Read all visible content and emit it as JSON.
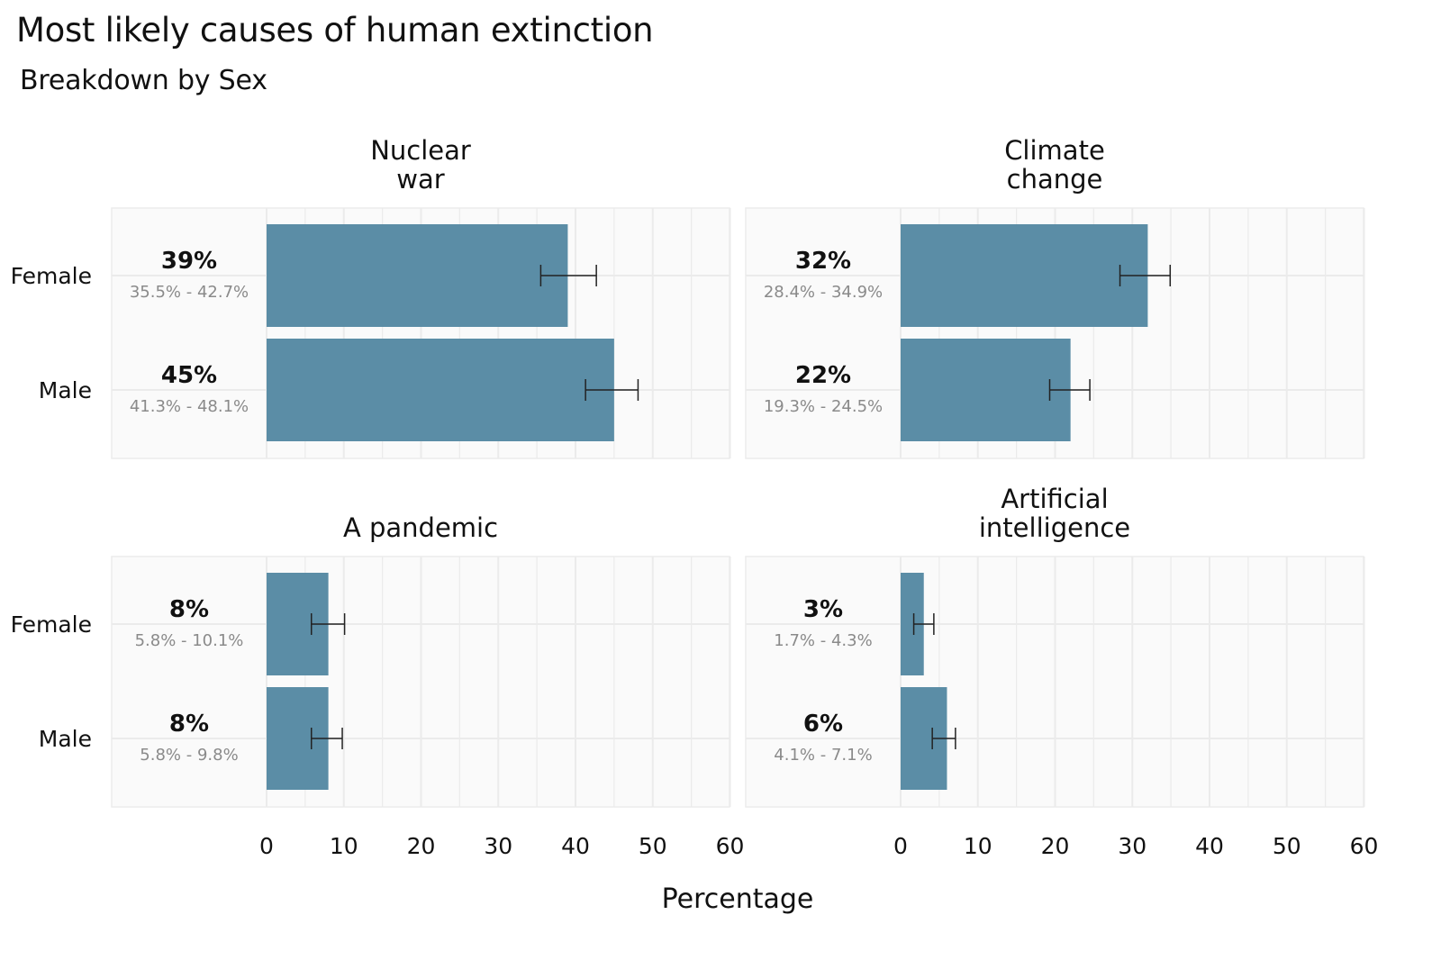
{
  "chart_data": {
    "type": "bar",
    "orientation": "horizontal",
    "title": "Most likely causes of human extinction",
    "subtitle": "Breakdown by Sex",
    "xlabel": "Percentage",
    "ylabel": "",
    "xlim": [
      0,
      60
    ],
    "x_ticks": [
      "0",
      "10",
      "20",
      "30",
      "40",
      "50",
      "60"
    ],
    "categories": [
      "Female",
      "Male"
    ],
    "bar_color": "#5b8da6",
    "panel_bg": "#fafafa",
    "grid": true,
    "facets": [
      {
        "title": [
          "Nuclear",
          "war"
        ],
        "bars": [
          {
            "category": "Female",
            "value": 39,
            "low": 35.5,
            "high": 42.7,
            "label": "39%",
            "ci_label": "35.5% - 42.7%"
          },
          {
            "category": "Male",
            "value": 45,
            "low": 41.3,
            "high": 48.1,
            "label": "45%",
            "ci_label": "41.3% - 48.1%"
          }
        ]
      },
      {
        "title": [
          "Climate",
          "change"
        ],
        "bars": [
          {
            "category": "Female",
            "value": 32,
            "low": 28.4,
            "high": 34.9,
            "label": "32%",
            "ci_label": "28.4% - 34.9%"
          },
          {
            "category": "Male",
            "value": 22,
            "low": 19.3,
            "high": 24.5,
            "label": "22%",
            "ci_label": "19.3% - 24.5%"
          }
        ]
      },
      {
        "title": [
          "A pandemic"
        ],
        "bars": [
          {
            "category": "Female",
            "value": 8,
            "low": 5.8,
            "high": 10.1,
            "label": "8%",
            "ci_label": "5.8% - 10.1%"
          },
          {
            "category": "Male",
            "value": 8,
            "low": 5.8,
            "high": 9.8,
            "label": "8%",
            "ci_label": "5.8% - 9.8%"
          }
        ]
      },
      {
        "title": [
          "Artificial",
          "intelligence"
        ],
        "bars": [
          {
            "category": "Female",
            "value": 3,
            "low": 1.7,
            "high": 4.3,
            "label": "3%",
            "ci_label": "1.7% - 4.3%"
          },
          {
            "category": "Male",
            "value": 6,
            "low": 4.1,
            "high": 7.1,
            "label": "6%",
            "ci_label": "4.1% - 7.1%"
          }
        ]
      }
    ]
  }
}
